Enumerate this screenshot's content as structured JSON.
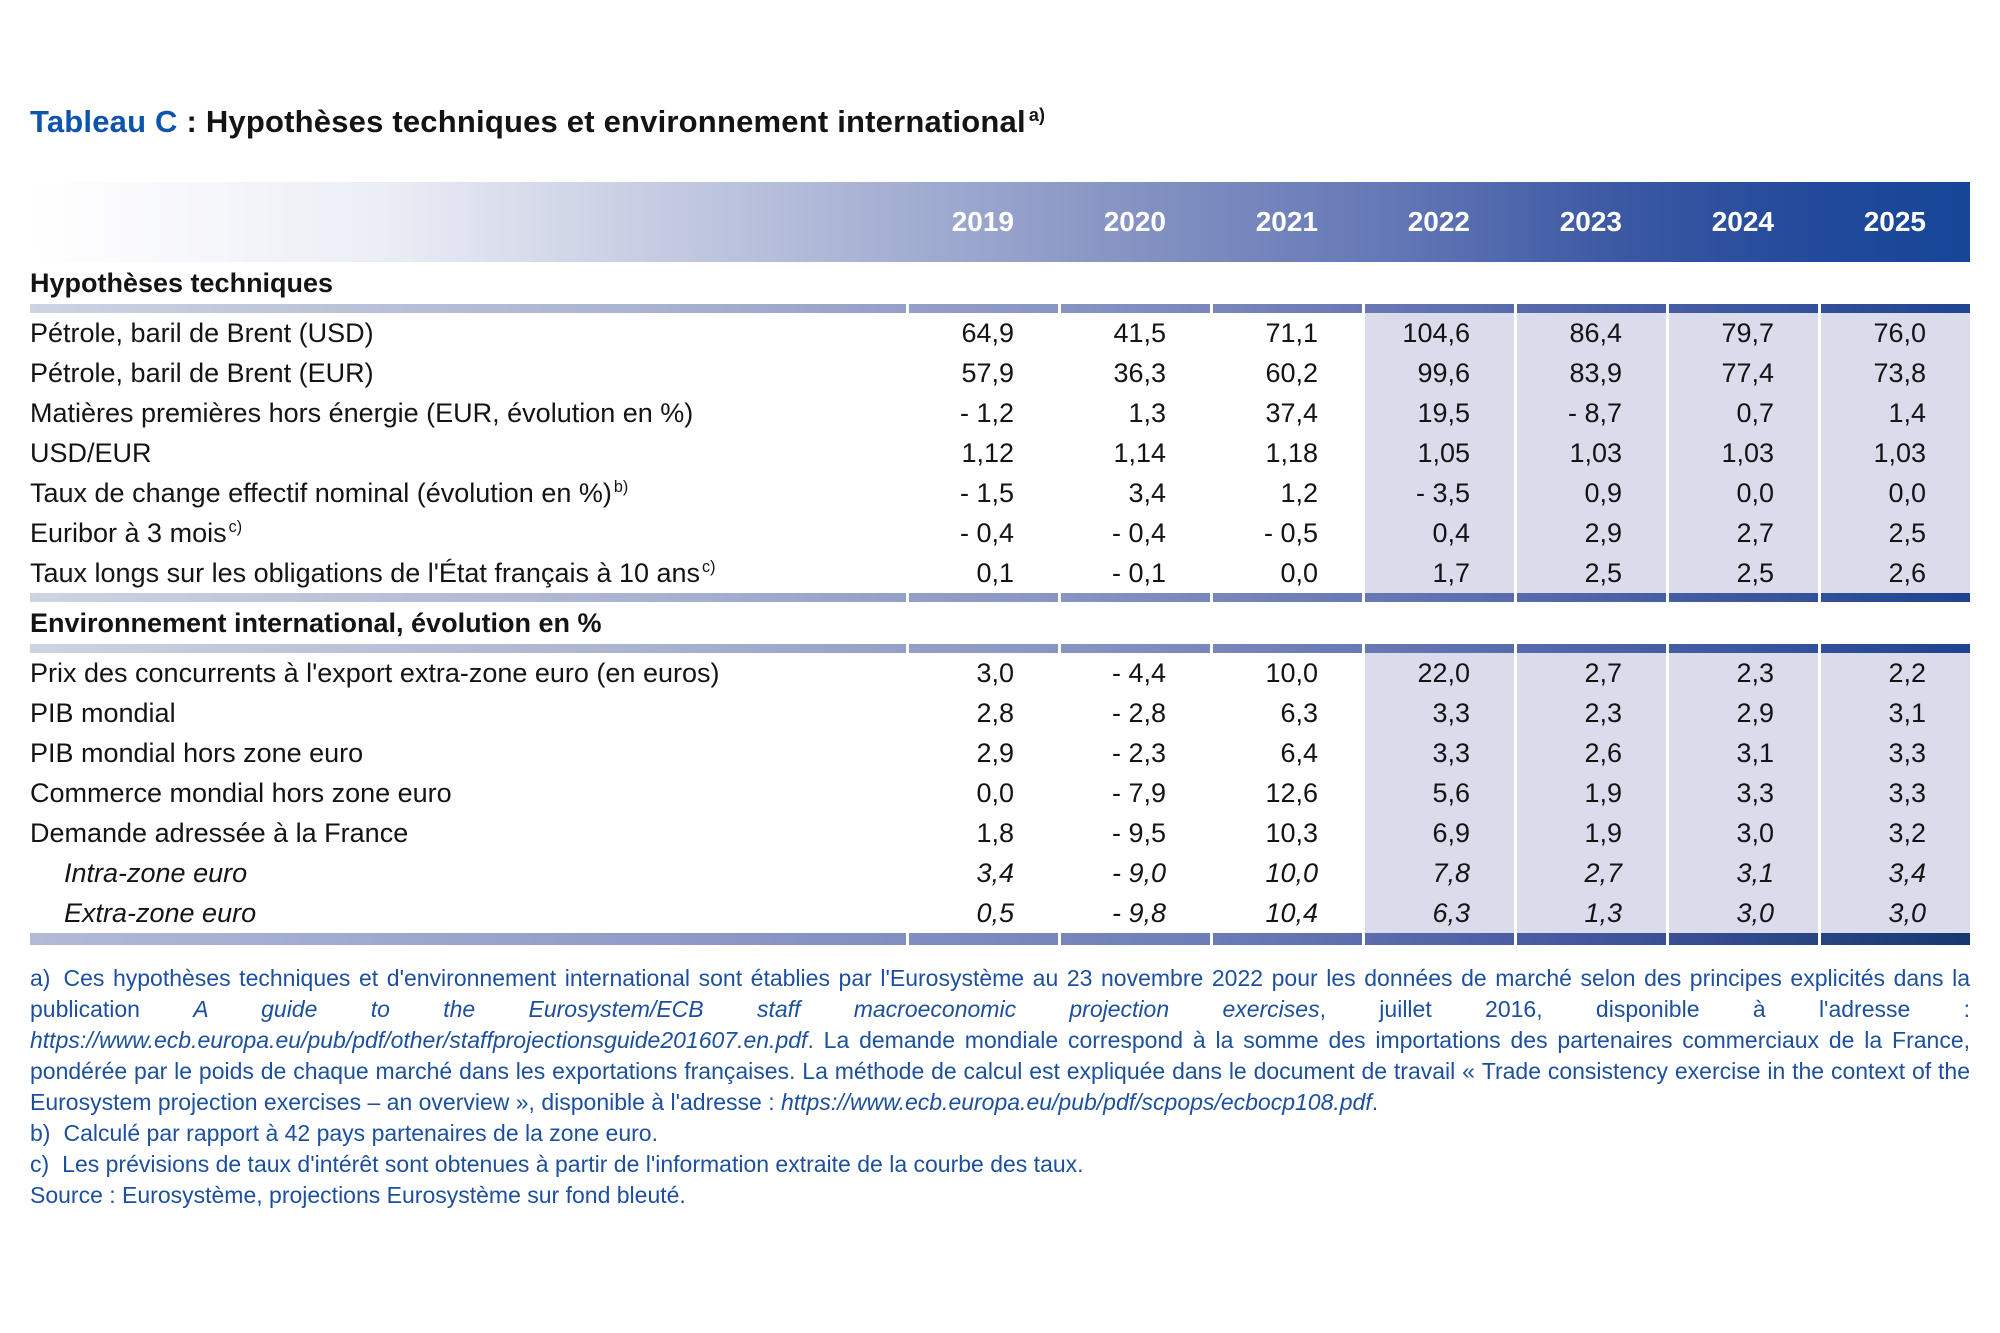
{
  "title": {
    "label": "Tableau C",
    "separator": " : ",
    "text": "Hypothèses techniques et environnement international",
    "note_ref": "a)"
  },
  "colors": {
    "title_blue": "#0d54ae",
    "header_band_dark": "#164697",
    "projection_shade": "#dadcec",
    "footnote_blue": "#1c509f",
    "text": "#141414"
  },
  "table": {
    "years": [
      "2019",
      "2020",
      "2021",
      "2022",
      "2023",
      "2024",
      "2025"
    ],
    "projection_columns_start": "2022",
    "sections": [
      {
        "header": "Hypothèses techniques",
        "rows": [
          {
            "label": "Pétrole, baril de Brent (USD)",
            "sup": "",
            "italic": false,
            "indent": false,
            "values": [
              "64,9",
              "41,5",
              "71,1",
              "104,6",
              "86,4",
              "79,7",
              "76,0"
            ]
          },
          {
            "label": "Pétrole, baril de Brent (EUR)",
            "sup": "",
            "italic": false,
            "indent": false,
            "values": [
              "57,9",
              "36,3",
              "60,2",
              "99,6",
              "83,9",
              "77,4",
              "73,8"
            ]
          },
          {
            "label": "Matières premières hors énergie (EUR, évolution en %)",
            "sup": "",
            "italic": false,
            "indent": false,
            "values": [
              "- 1,2",
              "1,3",
              "37,4",
              "19,5",
              "- 8,7",
              "0,7",
              "1,4"
            ]
          },
          {
            "label": "USD/EUR",
            "sup": "",
            "italic": false,
            "indent": false,
            "values": [
              "1,12",
              "1,14",
              "1,18",
              "1,05",
              "1,03",
              "1,03",
              "1,03"
            ]
          },
          {
            "label": "Taux de change effectif nominal (évolution en %)",
            "sup": "b)",
            "italic": false,
            "indent": false,
            "values": [
              "- 1,5",
              "3,4",
              "1,2",
              "- 3,5",
              "0,9",
              "0,0",
              "0,0"
            ]
          },
          {
            "label": "Euribor à 3 mois",
            "sup": "c)",
            "italic": false,
            "indent": false,
            "values": [
              "- 0,4",
              "- 0,4",
              "- 0,5",
              "0,4",
              "2,9",
              "2,7",
              "2,5"
            ]
          },
          {
            "label": "Taux longs sur les obligations de l'État français à 10 ans",
            "sup": "c)",
            "italic": false,
            "indent": false,
            "values": [
              "0,1",
              "- 0,1",
              "0,0",
              "1,7",
              "2,5",
              "2,5",
              "2,6"
            ]
          }
        ]
      },
      {
        "header": "Environnement international, évolution en %",
        "rows": [
          {
            "label": "Prix des concurrents à l'export extra-zone euro (en euros)",
            "sup": "",
            "italic": false,
            "indent": false,
            "values": [
              "3,0",
              "- 4,4",
              "10,0",
              "22,0",
              "2,7",
              "2,3",
              "2,2"
            ]
          },
          {
            "label": "PIB mondial",
            "sup": "",
            "italic": false,
            "indent": false,
            "values": [
              "2,8",
              "- 2,8",
              "6,3",
              "3,3",
              "2,3",
              "2,9",
              "3,1"
            ]
          },
          {
            "label": "PIB mondial hors zone euro",
            "sup": "",
            "italic": false,
            "indent": false,
            "values": [
              "2,9",
              "- 2,3",
              "6,4",
              "3,3",
              "2,6",
              "3,1",
              "3,3"
            ]
          },
          {
            "label": "Commerce mondial hors zone euro",
            "sup": "",
            "italic": false,
            "indent": false,
            "values": [
              "0,0",
              "- 7,9",
              "12,6",
              "5,6",
              "1,9",
              "3,3",
              "3,3"
            ]
          },
          {
            "label": "Demande adressée à la France",
            "sup": "",
            "italic": false,
            "indent": false,
            "values": [
              "1,8",
              "- 9,5",
              "10,3",
              "6,9",
              "1,9",
              "3,0",
              "3,2"
            ]
          },
          {
            "label": "Intra-zone euro",
            "sup": "",
            "italic": true,
            "indent": true,
            "values": [
              "3,4",
              "- 9,0",
              "10,0",
              "7,8",
              "2,7",
              "3,1",
              "3,4"
            ]
          },
          {
            "label": "Extra-zone euro",
            "sup": "",
            "italic": true,
            "indent": true,
            "values": [
              "0,5",
              "- 9,8",
              "10,4",
              "6,3",
              "1,3",
              "3,0",
              "3,0"
            ]
          }
        ]
      }
    ]
  },
  "footnotes": {
    "items": [
      {
        "marker": "a)",
        "segments": [
          {
            "text": "Ces hypothèses techniques et d'environnement international sont établies par l'Eurosystème au 23 novembre 2022 pour les données de marché selon des principes explicités dans la publication ",
            "italic": false
          },
          {
            "text": "A guide to the Eurosystem/ECB staff macroeconomic projection exercises",
            "italic": true
          },
          {
            "text": ", juillet 2016, disponible à l'adresse : ",
            "italic": false
          },
          {
            "text": "https://www.ecb.europa.eu/pub/pdf/other/staffprojectionsguide201607.en.pdf",
            "italic": true,
            "url": true
          },
          {
            "text": ". La demande mondiale correspond à la somme des importations des partenaires commerciaux de la France, pondérée par le poids de chaque marché dans les exportations françaises. La méthode de calcul est expliquée dans le document de travail « Trade consistency exercise in the context of the Eurosystem projection exercises – an overview », disponible à l'adresse : ",
            "italic": false
          },
          {
            "text": "https://www.ecb.europa.eu/pub/pdf/scpops/ecbocp108.pdf",
            "italic": true,
            "url": true
          },
          {
            "text": ".",
            "italic": false
          }
        ]
      },
      {
        "marker": "b)",
        "segments": [
          {
            "text": "Calculé par rapport à 42 pays partenaires de la zone euro.",
            "italic": false
          }
        ]
      },
      {
        "marker": "c)",
        "segments": [
          {
            "text": "Les prévisions de taux d'intérêt sont obtenues à partir de l'information extraite de la courbe des taux.",
            "italic": false
          }
        ]
      },
      {
        "marker": "",
        "segments": [
          {
            "text": "Source : Eurosystème, projections Eurosystème sur fond bleuté.",
            "italic": false
          }
        ]
      }
    ]
  }
}
